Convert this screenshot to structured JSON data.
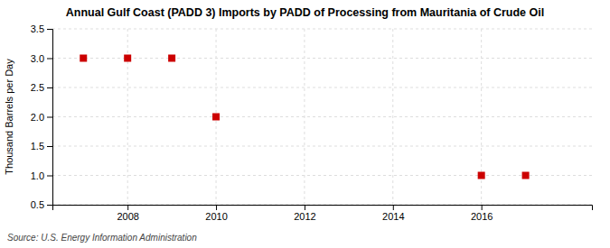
{
  "chart_data": {
    "type": "scatter",
    "title": "Annual Gulf Coast (PADD 3) Imports by PADD of Processing from Mauritania of Crude Oil",
    "ylabel": "Thousand Barrels per Day",
    "source": "Source: U.S. Energy Information Administration",
    "x": [
      2007,
      2008,
      2009,
      2010,
      2016,
      2017
    ],
    "values": [
      3,
      3,
      3,
      2,
      1,
      1
    ],
    "color": "#cc0000",
    "marker": "square",
    "xlim": [
      2006.3,
      2018.5
    ],
    "ylim": [
      0.5,
      3.5
    ],
    "xticks": [
      2008,
      2010,
      2012,
      2014,
      2016
    ],
    "yticks": [
      0.5,
      {
        "value": 1.0,
        "label": "1.0"
      },
      1.5,
      {
        "value": 2.0,
        "label": "2.0"
      },
      2.5,
      {
        "value": 3.0,
        "label": "3.0"
      },
      3.5
    ],
    "grid": true
  }
}
